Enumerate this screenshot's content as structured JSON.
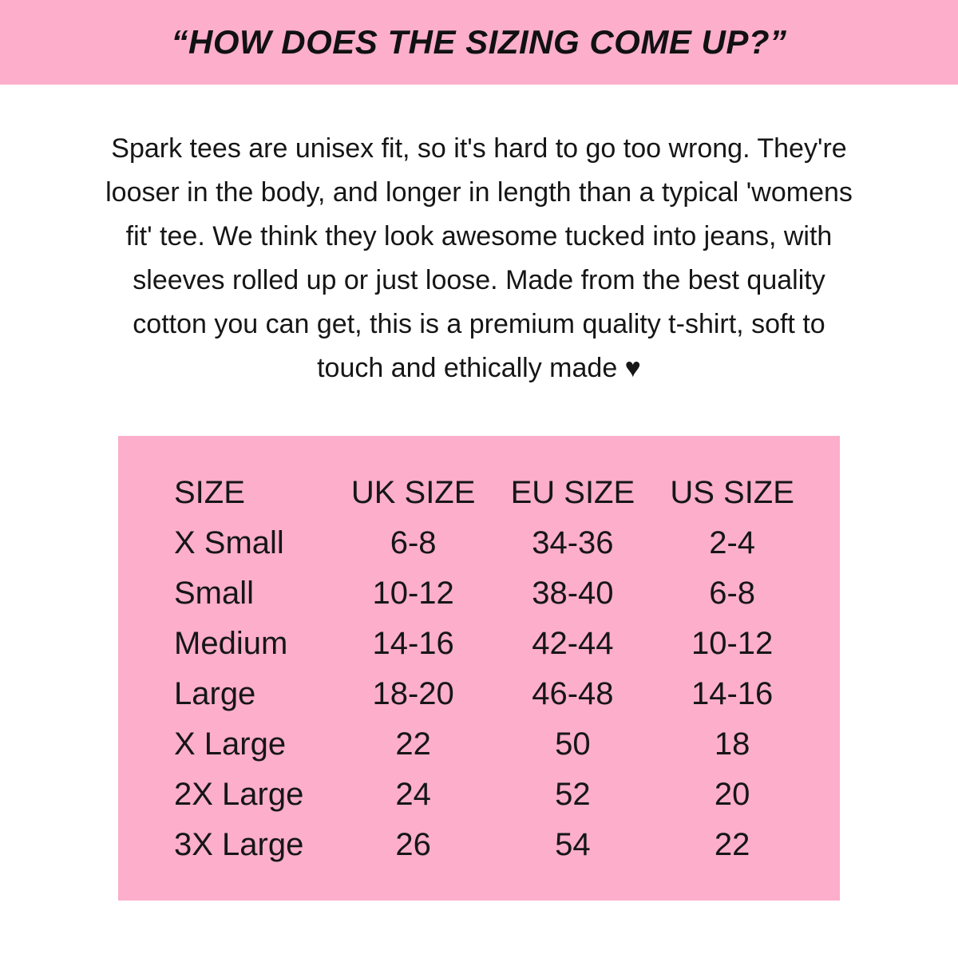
{
  "colors": {
    "pink": "#FCAECB",
    "text": "#111111",
    "background": "#FFFFFF"
  },
  "header": {
    "title": "“HOW DOES THE SIZING COME UP?”"
  },
  "intro": {
    "lines": [
      "Spark tees are unisex fit, so it's hard to go too wrong. They're",
      "looser in the body, and longer in length than a typical 'womens",
      "fit' tee. We think they look awesome tucked into jeans, with",
      "sleeves rolled up or just loose. Made from the best quality",
      "cotton you can get, this is a premium quality t-shirt, soft to",
      "touch and ethically made ♥"
    ],
    "heart_icon": "♥"
  },
  "size_chart": {
    "columns": [
      "SIZE",
      "UK SIZE",
      "EU SIZE",
      "US SIZE"
    ],
    "rows": [
      [
        "X Small",
        "6-8",
        "34-36",
        "2-4"
      ],
      [
        "Small",
        "10-12",
        "38-40",
        "6-8"
      ],
      [
        "Medium",
        "14-16",
        "42-44",
        "10-12"
      ],
      [
        "Large",
        "18-20",
        "46-48",
        "14-16"
      ],
      [
        "X Large",
        "22",
        "50",
        "18"
      ],
      [
        "2X Large",
        "24",
        "52",
        "20"
      ],
      [
        "3X Large",
        "26",
        "54",
        "22"
      ]
    ]
  }
}
